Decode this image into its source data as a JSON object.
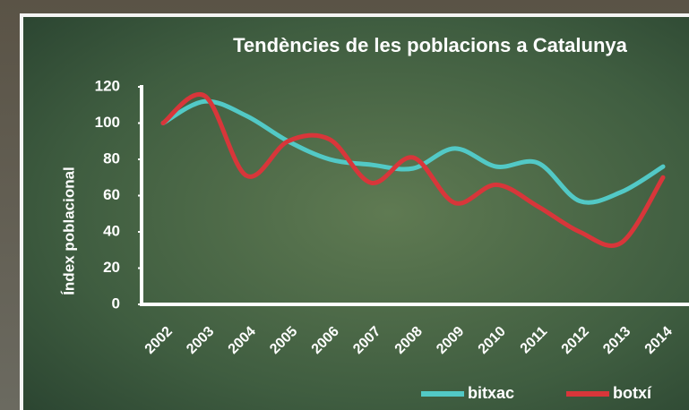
{
  "chart_data": {
    "type": "line",
    "title": "Tendències de les poblacions a Catalunya",
    "y_label": "Índex poblacional",
    "categories": [
      "2002",
      "2003",
      "2004",
      "2005",
      "2006",
      "2007",
      "2008",
      "2009",
      "2010",
      "2011",
      "2012",
      "2013",
      "2014"
    ],
    "series": [
      {
        "name": "bitxac",
        "color": "#52c9c6",
        "values": [
          100,
          112,
          104,
          90,
          80,
          77,
          75,
          86,
          76,
          78,
          57,
          62,
          76
        ]
      },
      {
        "name": "botxí",
        "color": "#d8363a",
        "values": [
          100,
          115,
          71,
          90,
          91,
          67,
          81,
          56,
          66,
          54,
          40,
          34,
          70
        ]
      }
    ],
    "ylim": [
      0,
      120
    ],
    "yticks": [
      0,
      20,
      40,
      60,
      80,
      100,
      120
    ],
    "legend": "bottom-right"
  }
}
